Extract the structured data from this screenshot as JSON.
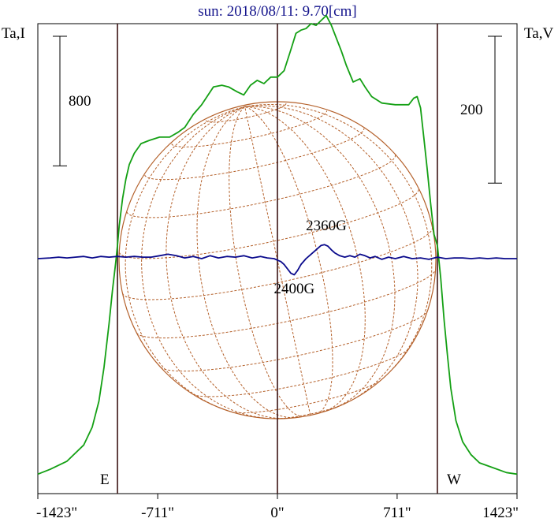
{
  "chart_data": {
    "type": "line",
    "title": "sun: 2018/08/11: 9.70[cm]",
    "ylabel_left": "Ta,I",
    "ylabel_right": "Ta,V",
    "xlim": [
      -1423,
      1423
    ],
    "x_ticks": [
      {
        "value": -1423,
        "label": "-1423\""
      },
      {
        "value": -711,
        "label": "-711\""
      },
      {
        "value": 0,
        "label": "0\""
      },
      {
        "value": 711,
        "label": "711\""
      },
      {
        "value": 1423,
        "label": "1423\""
      }
    ],
    "limb_markers": [
      {
        "x": -950,
        "label": "E"
      },
      {
        "x": 0,
        "label": ""
      },
      {
        "x": 950,
        "label": "W"
      }
    ],
    "scale_bars": [
      {
        "side": "left",
        "series": "I",
        "value": 800,
        "label": "800"
      },
      {
        "side": "right",
        "series": "V",
        "value": 200,
        "label": "200"
      }
    ],
    "annotations": [
      {
        "text": "2360G",
        "x": 290,
        "series": "V",
        "y": 17
      },
      {
        "text": "2400G",
        "x": 100,
        "series": "V",
        "y": -11
      }
    ],
    "axes": {
      "I_range": [
        -100,
        2800
      ],
      "V_range": [
        -320,
        320
      ]
    },
    "series": [
      {
        "name": "I",
        "color": "#14a014",
        "x": [
          -1423,
          -1350,
          -1250,
          -1150,
          -1100,
          -1060,
          -1030,
          -1000,
          -980,
          -960,
          -950,
          -940,
          -920,
          -900,
          -880,
          -850,
          -810,
          -760,
          -700,
          -640,
          -590,
          -550,
          -500,
          -450,
          -380,
          -330,
          -290,
          -240,
          -200,
          -160,
          -120,
          -80,
          -40,
          0,
          40,
          80,
          110,
          140,
          170,
          200,
          230,
          260,
          290,
          320,
          350,
          380,
          410,
          450,
          490,
          520,
          560,
          620,
          700,
          780,
          810,
          830,
          850,
          870,
          890,
          910,
          930,
          950,
          970,
          990,
          1010,
          1030,
          1060,
          1100,
          1150,
          1200,
          1280,
          1360,
          1423
        ],
        "values": [
          20,
          50,
          100,
          200,
          310,
          470,
          680,
          950,
          1150,
          1330,
          1430,
          1550,
          1720,
          1840,
          1930,
          2000,
          2060,
          2080,
          2100,
          2100,
          2130,
          2160,
          2240,
          2300,
          2410,
          2420,
          2410,
          2380,
          2360,
          2420,
          2450,
          2430,
          2470,
          2470,
          2510,
          2640,
          2740,
          2760,
          2770,
          2800,
          2790,
          2820,
          2850,
          2790,
          2710,
          2630,
          2540,
          2440,
          2460,
          2410,
          2350,
          2310,
          2300,
          2300,
          2340,
          2350,
          2280,
          2090,
          1900,
          1690,
          1500,
          1430,
          1230,
          970,
          750,
          550,
          350,
          220,
          140,
          90,
          60,
          30,
          20
        ]
      },
      {
        "name": "V",
        "color": "#0a0a8c",
        "x": [
          -1423,
          -1350,
          -1300,
          -1250,
          -1200,
          -1150,
          -1100,
          -1050,
          -1000,
          -950,
          -900,
          -850,
          -800,
          -750,
          -700,
          -650,
          -600,
          -550,
          -500,
          -450,
          -400,
          -350,
          -300,
          -250,
          -200,
          -150,
          -100,
          -60,
          -20,
          0,
          20,
          40,
          60,
          80,
          100,
          120,
          140,
          170,
          200,
          230,
          260,
          280,
          300,
          320,
          340,
          370,
          400,
          430,
          460,
          490,
          520,
          550,
          580,
          620,
          660,
          700,
          750,
          800,
          850,
          900,
          950,
          1000,
          1050,
          1100,
          1150,
          1200,
          1250,
          1300,
          1350,
          1423
        ],
        "values": [
          0,
          1,
          2,
          1,
          2,
          3,
          1,
          3,
          2,
          3,
          2,
          3,
          2,
          2,
          4,
          6,
          4,
          1,
          3,
          0,
          4,
          1,
          3,
          2,
          4,
          1,
          3,
          1,
          0,
          -2,
          -4,
          -8,
          -14,
          -20,
          -22,
          -16,
          -8,
          0,
          6,
          12,
          18,
          19,
          17,
          12,
          8,
          4,
          2,
          4,
          2,
          6,
          4,
          1,
          3,
          -1,
          2,
          0,
          3,
          0,
          1,
          -1,
          2,
          0,
          1,
          1,
          0,
          1,
          0,
          1,
          0,
          0
        ]
      }
    ],
    "grid": false,
    "overlay": "solar-disk-grid"
  }
}
